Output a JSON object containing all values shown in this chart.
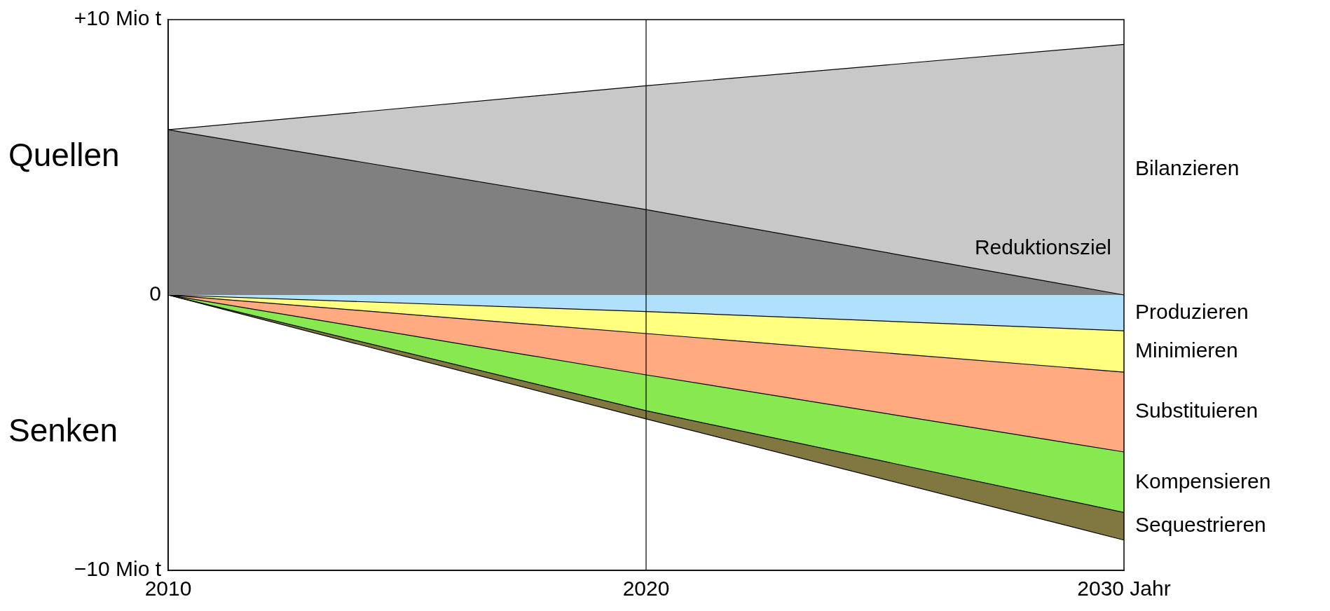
{
  "chart_data": {
    "type": "area",
    "x": [
      2010,
      2020,
      2030
    ],
    "xlim": [
      2010,
      2030
    ],
    "xticks": [
      2010,
      2020,
      {
        "value": 2030,
        "label": "2030 Jahr"
      }
    ],
    "ylim": [
      -10,
      10
    ],
    "yticks": [
      {
        "value": 10,
        "label": "+10 Mio t"
      },
      0,
      {
        "value": -10,
        "label": "−10 Mio t"
      }
    ],
    "grid": false,
    "legend": false,
    "marker": "none",
    "series": [
      {
        "name": "Reduktionsziel",
        "color": "#808080",
        "values": [
          6,
          3.1,
          0
        ]
      },
      {
        "name": "Bilanzieren",
        "color": "#c8c8c8",
        "values": [
          6,
          7.6,
          9.1
        ]
      },
      {
        "name": "Produzieren",
        "color": "#b0e0fc",
        "values": [
          0,
          -0.6,
          -1.3
        ]
      },
      {
        "name": "Minimieren",
        "color": "#ffff80",
        "values": [
          0,
          -1.4,
          -2.8
        ]
      },
      {
        "name": "Substituieren",
        "color": "#ffaa80",
        "values": [
          0,
          -2.9,
          -5.7
        ]
      },
      {
        "name": "Kompensieren",
        "color": "#88e850",
        "values": [
          0,
          -4.2,
          -7.9
        ]
      },
      {
        "name": "Sequestrieren",
        "color": "#807840",
        "values": [
          0,
          -4.5,
          -8.9
        ]
      }
    ],
    "ref_lines": [
      {
        "axis": "x",
        "value": 2020,
        "label": null
      }
    ],
    "annotations": [
      "Quellen",
      "Senken"
    ]
  }
}
